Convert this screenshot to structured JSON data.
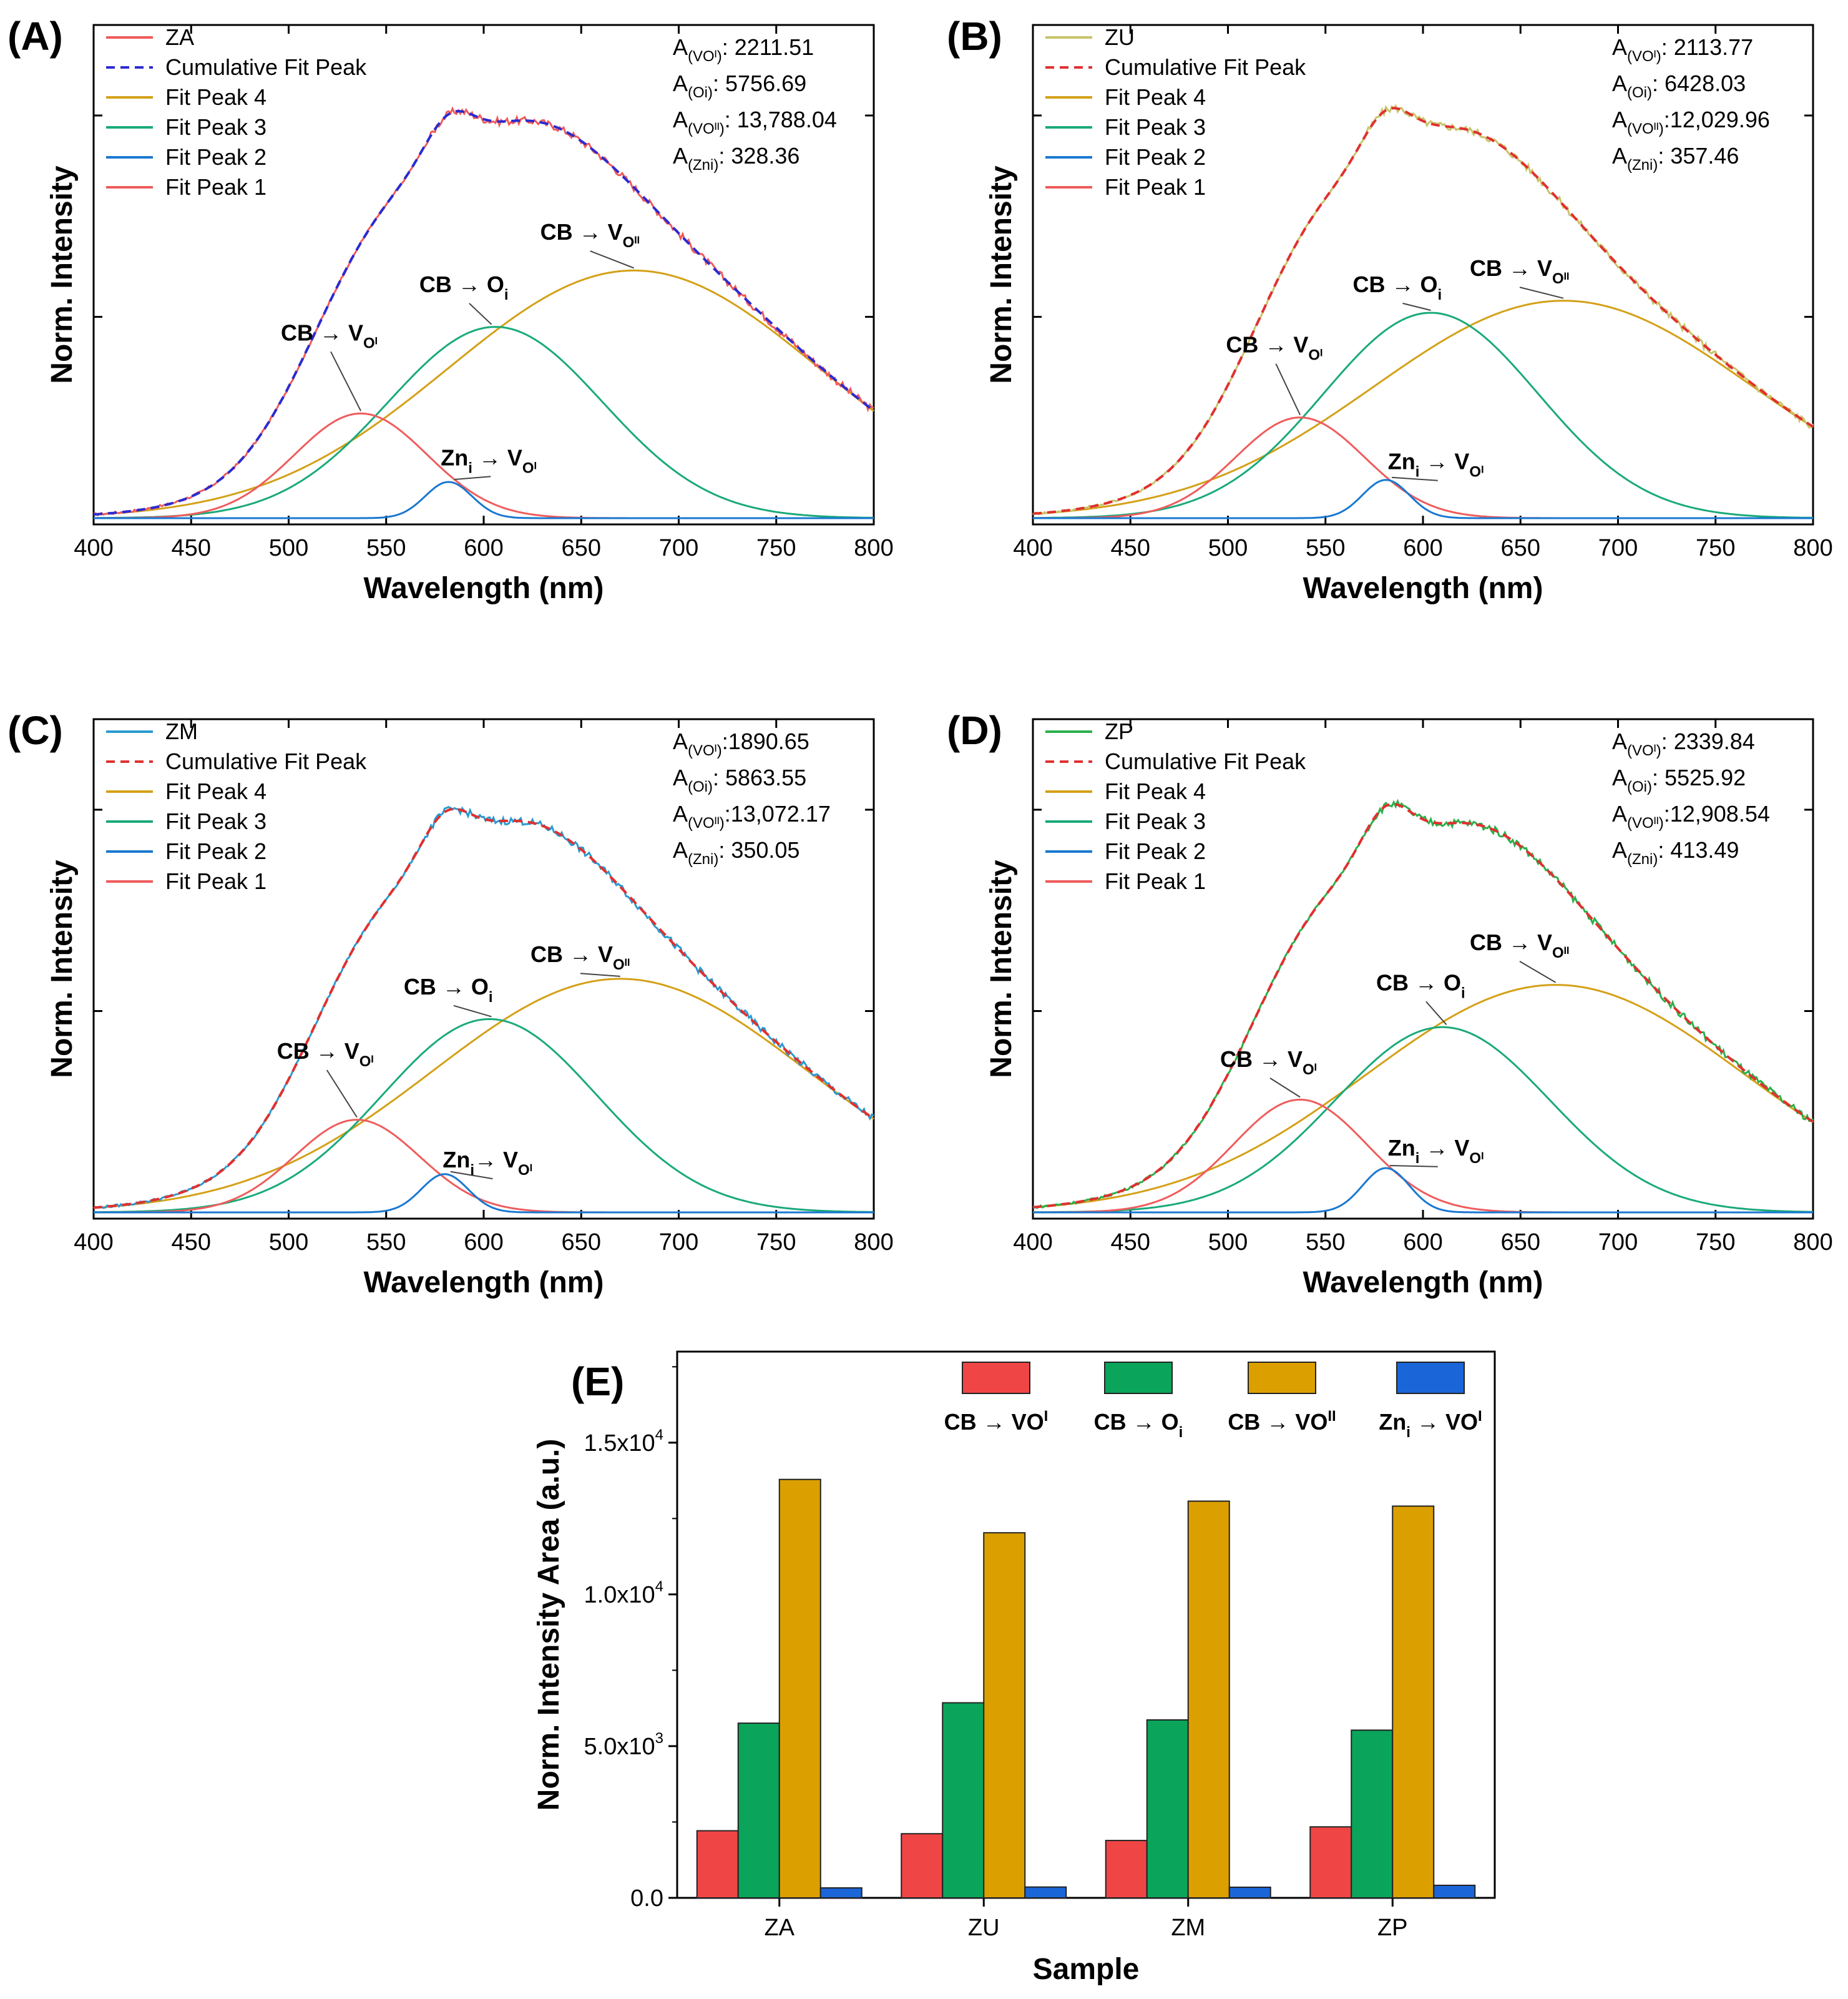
{
  "chart_data": [
    {
      "panel": "(A)",
      "type": "line",
      "xlabel": "Wavelength (nm)",
      "ylabel": "Norm. Intensity",
      "xlim": [
        400,
        800
      ],
      "ylim": [
        0,
        1
      ],
      "xticks": [
        "400",
        "450",
        "500",
        "550",
        "600",
        "650",
        "700",
        "750",
        "800"
      ],
      "legend": [
        "ZA",
        "Cumulative Fit Peak",
        "Fit Peak 4",
        "Fit Peak 3",
        "Fit Peak 2",
        "Fit Peak 1"
      ],
      "colors": {
        "data": "#f05a5a",
        "cumulative": "#2b2bd0",
        "peak4": "#d4a017",
        "peak3": "#1aaa7a",
        "peak2": "#1a78d0",
        "peak1": "#ef5c5c"
      },
      "cumulative_dash": true,
      "peaks": [
        {
          "name": "Fit Peak 1",
          "center": 537,
          "height": 0.26,
          "sigma": 34
        },
        {
          "name": "Fit Peak 2",
          "center": 582,
          "height": 0.09,
          "sigma": 12
        },
        {
          "name": "Fit Peak 3",
          "center": 606,
          "height": 0.475,
          "sigma": 55
        },
        {
          "name": "Fit Peak 4",
          "center": 677,
          "height": 0.615,
          "sigma": 95
        }
      ],
      "areas": [
        {
          "label": "A",
          "sub": "(VOᴵ)",
          "value": ": 2211.51"
        },
        {
          "label": "A",
          "sub": "(Oi)",
          "value": ": 5756.69"
        },
        {
          "label": "A",
          "sub": "(VOᴵᴵ)",
          "value": ": 13,788.04"
        },
        {
          "label": "A",
          "sub": "(Zni)",
          "value": ": 328.36"
        }
      ],
      "annotations": [
        {
          "main": "CB → V",
          "sub": "Oᴵ",
          "x": 537,
          "y": 0.26,
          "tx": 512,
          "ty": 0.46
        },
        {
          "main": "CB → O",
          "sub": "i",
          "x": 604,
          "y": 0.475,
          "tx": 583,
          "ty": 0.58
        },
        {
          "main": "CB → V",
          "sub": "Oᴵᴵ",
          "x": 677,
          "y": 0.615,
          "tx": 645,
          "ty": 0.71
        },
        {
          "main": "Zn",
          "sub": "i",
          "tail": " → V",
          "sub2": "Oᴵ",
          "x": 585,
          "y": 0.09,
          "tx": 594,
          "ty": 0.15
        }
      ]
    },
    {
      "panel": "(B)",
      "type": "line",
      "xlabel": "Wavelength (nm)",
      "ylabel": "Norm. Intensity",
      "xlim": [
        400,
        800
      ],
      "ylim": [
        0,
        1
      ],
      "xticks": [
        "400",
        "450",
        "500",
        "550",
        "600",
        "650",
        "700",
        "750",
        "800"
      ],
      "legend": [
        "ZU",
        "Cumulative Fit Peak",
        "Fit Peak 4",
        "Fit Peak 3",
        "Fit Peak 2",
        "Fit Peak 1"
      ],
      "colors": {
        "data": "#c9c46a",
        "cumulative": "#e03030",
        "peak4": "#d4a017",
        "peak3": "#1aaa7a",
        "peak2": "#1a78d0",
        "peak1": "#ef5c5c"
      },
      "cumulative_dash": true,
      "peaks": [
        {
          "name": "Fit Peak 1",
          "center": 537,
          "height": 0.25,
          "sigma": 33
        },
        {
          "name": "Fit Peak 2",
          "center": 581,
          "height": 0.095,
          "sigma": 12
        },
        {
          "name": "Fit Peak 3",
          "center": 604,
          "height": 0.51,
          "sigma": 55
        },
        {
          "name": "Fit Peak 4",
          "center": 672,
          "height": 0.54,
          "sigma": 97
        }
      ],
      "areas": [
        {
          "label": "A",
          "sub": "(VOᴵ)",
          "value": ": 2113.77"
        },
        {
          "label": "A",
          "sub": "(Oi)",
          "value": ": 6428.03"
        },
        {
          "label": "A",
          "sub": "(VOᴵᴵ)",
          "value": ":12,029.96"
        },
        {
          "label": "A",
          "sub": "(Zni)",
          "value": ": 357.46"
        }
      ],
      "annotations": [
        {
          "main": "CB → V",
          "sub": "Oᴵ",
          "x": 537,
          "y": 0.25,
          "tx": 515,
          "ty": 0.43
        },
        {
          "main": "CB → O",
          "sub": "i",
          "x": 604,
          "y": 0.51,
          "tx": 580,
          "ty": 0.58
        },
        {
          "main": "CB → V",
          "sub": "Oᴵᴵ",
          "x": 672,
          "y": 0.54,
          "tx": 640,
          "ty": 0.62
        },
        {
          "main": "Zn",
          "sub": "i",
          "tail": " → V",
          "sub2": "Oᴵ",
          "x": 584,
          "y": 0.095,
          "tx": 598,
          "ty": 0.14
        }
      ]
    },
    {
      "panel": "(C)",
      "type": "line",
      "xlabel": "Wavelength (nm)",
      "ylabel": "Norm. Intensity",
      "xlim": [
        400,
        800
      ],
      "ylim": [
        0,
        1
      ],
      "xticks": [
        "400",
        "450",
        "500",
        "550",
        "600",
        "650",
        "700",
        "750",
        "800"
      ],
      "legend": [
        "ZM",
        "Cumulative Fit Peak",
        "Fit Peak 4",
        "Fit Peak 3",
        "Fit Peak 2",
        "Fit Peak 1"
      ],
      "colors": {
        "data": "#2a9ad0",
        "cumulative": "#e03030",
        "peak4": "#d4a017",
        "peak3": "#1aaa7a",
        "peak2": "#1a78d0",
        "peak1": "#ef5c5c"
      },
      "cumulative_dash": true,
      "peaks": [
        {
          "name": "Fit Peak 1",
          "center": 535,
          "height": 0.23,
          "sigma": 32
        },
        {
          "name": "Fit Peak 2",
          "center": 580,
          "height": 0.095,
          "sigma": 12
        },
        {
          "name": "Fit Peak 3",
          "center": 603,
          "height": 0.48,
          "sigma": 55
        },
        {
          "name": "Fit Peak 4",
          "center": 670,
          "height": 0.58,
          "sigma": 96
        }
      ],
      "areas": [
        {
          "label": "A",
          "sub": "(VOᴵ)",
          "value": ":1890.65"
        },
        {
          "label": "A",
          "sub": "(Oi)",
          "value": ": 5863.55"
        },
        {
          "label": "A",
          "sub": "(VOᴵᴵ)",
          "value": ":13,072.17"
        },
        {
          "label": "A",
          "sub": "(Zni)",
          "value": ": 350.05"
        }
      ],
      "annotations": [
        {
          "main": "CB → V",
          "sub": "Oᴵ",
          "x": 535,
          "y": 0.23,
          "tx": 510,
          "ty": 0.4
        },
        {
          "main": "CB → O",
          "sub": "i",
          "x": 604,
          "y": 0.48,
          "tx": 575,
          "ty": 0.56
        },
        {
          "main": "CB → V",
          "sub": "Oᴵᴵ",
          "x": 670,
          "y": 0.58,
          "tx": 640,
          "ty": 0.64
        },
        {
          "main": "Zn",
          "sub": "i",
          "tail": "→ V",
          "sub2": "Oᴵ",
          "x": 583,
          "y": 0.095,
          "tx": 595,
          "ty": 0.13
        }
      ]
    },
    {
      "panel": "(D)",
      "type": "line",
      "xlabel": "Wavelength (nm)",
      "ylabel": "Norm. Intensity",
      "xlim": [
        400,
        800
      ],
      "ylim": [
        0,
        1
      ],
      "xticks": [
        "400",
        "450",
        "500",
        "550",
        "600",
        "650",
        "700",
        "750",
        "800"
      ],
      "legend": [
        "ZP",
        "Cumulative Fit Peak",
        "Fit Peak 4",
        "Fit Peak 3",
        "Fit Peak 2",
        "Fit Peak 1"
      ],
      "colors": {
        "data": "#2ab04a",
        "cumulative": "#e03030",
        "peak4": "#d4a017",
        "peak3": "#1aaa7a",
        "peak2": "#1a78d0",
        "peak1": "#ef5c5c"
      },
      "cumulative_dash": true,
      "peaks": [
        {
          "name": "Fit Peak 1",
          "center": 537,
          "height": 0.28,
          "sigma": 34
        },
        {
          "name": "Fit Peak 2",
          "center": 581,
          "height": 0.11,
          "sigma": 12
        },
        {
          "name": "Fit Peak 3",
          "center": 610,
          "height": 0.46,
          "sigma": 55
        },
        {
          "name": "Fit Peak 4",
          "center": 668,
          "height": 0.565,
          "sigma": 97
        }
      ],
      "areas": [
        {
          "label": "A",
          "sub": "(VOᴵ)",
          "value": ": 2339.84"
        },
        {
          "label": "A",
          "sub": "(Oi)",
          "value": ": 5525.92"
        },
        {
          "label": "A",
          "sub": "(VOᴵᴵ)",
          "value": ":12,908.54"
        },
        {
          "label": "A",
          "sub": "(Zni)",
          "value": ": 413.49"
        }
      ],
      "annotations": [
        {
          "main": "CB → V",
          "sub": "Oᴵ",
          "x": 537,
          "y": 0.28,
          "tx": 512,
          "ty": 0.38
        },
        {
          "main": "CB → O",
          "sub": "i",
          "x": 612,
          "y": 0.46,
          "tx": 592,
          "ty": 0.57
        },
        {
          "main": "CB → V",
          "sub": "Oᴵᴵ",
          "x": 668,
          "y": 0.565,
          "tx": 640,
          "ty": 0.67
        },
        {
          "main": "Zn",
          "sub": "i",
          "tail": " → V",
          "sub2": "Oᴵ",
          "x": 583,
          "y": 0.11,
          "tx": 598,
          "ty": 0.16
        }
      ]
    },
    {
      "panel": "(E)",
      "type": "bar",
      "xlabel": "Sample",
      "ylabel": "Norm. Intensity Area (a.u.)",
      "categories": [
        "ZA",
        "ZU",
        "ZM",
        "ZP"
      ],
      "ylim": [
        0,
        18000
      ],
      "yticks": [
        0,
        5000,
        10000,
        15000
      ],
      "ytick_labels": [
        {
          "main": "0.0",
          "exp": ""
        },
        {
          "main": "5.0x10",
          "exp": "3"
        },
        {
          "main": "1.0x10",
          "exp": "4"
        },
        {
          "main": "1.5x10",
          "exp": "4"
        }
      ],
      "series": [
        {
          "name": "CB → VOᴵ",
          "legend_main": "CB → VO",
          "legend_sup": "I",
          "color": "#f04545",
          "values": [
            2211.51,
            2113.77,
            1890.65,
            2339.84
          ]
        },
        {
          "name": "CB → Oi",
          "legend_main": "CB → O",
          "legend_sub": "i",
          "color": "#0aa55a",
          "values": [
            5756.69,
            6428.03,
            5863.55,
            5525.92
          ]
        },
        {
          "name": "CB → VOᴵᴵ",
          "legend_main": "CB → VO",
          "legend_sup": "II",
          "color": "#dba000",
          "values": [
            13788.04,
            12029.96,
            13072.17,
            12908.54
          ]
        },
        {
          "name": "Zni → VOᴵ",
          "legend_main": "Zn",
          "legend_sub": "i",
          "legend_tail": " → VO",
          "legend_sup": "I",
          "color": "#1a66d8",
          "values": [
            328.36,
            357.46,
            350.05,
            413.49
          ]
        }
      ]
    }
  ]
}
